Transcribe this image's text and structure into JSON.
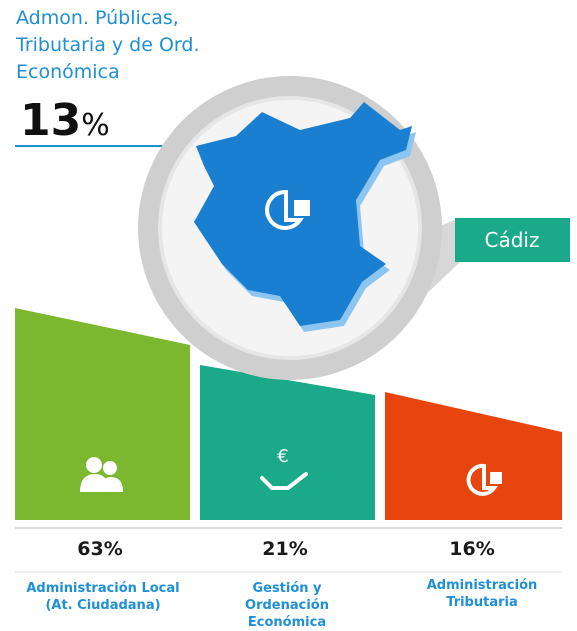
{
  "header": {
    "title_lines": [
      "Admon. Públicas,",
      "Tributaria y de Ord.",
      "Económica"
    ],
    "headline_number": "13",
    "headline_unit": "%"
  },
  "map": {
    "label": "Cádiz"
  },
  "blocks": [
    {
      "percent": "63%",
      "label_lines": [
        "Administración Local",
        "(At. Ciudadana)"
      ]
    },
    {
      "percent": "21%",
      "label_lines": [
        "Gestión y",
        "Ordenación",
        "Económica"
      ]
    },
    {
      "percent": "16%",
      "label_lines": [
        "Administración",
        "Tributaria"
      ]
    }
  ]
}
